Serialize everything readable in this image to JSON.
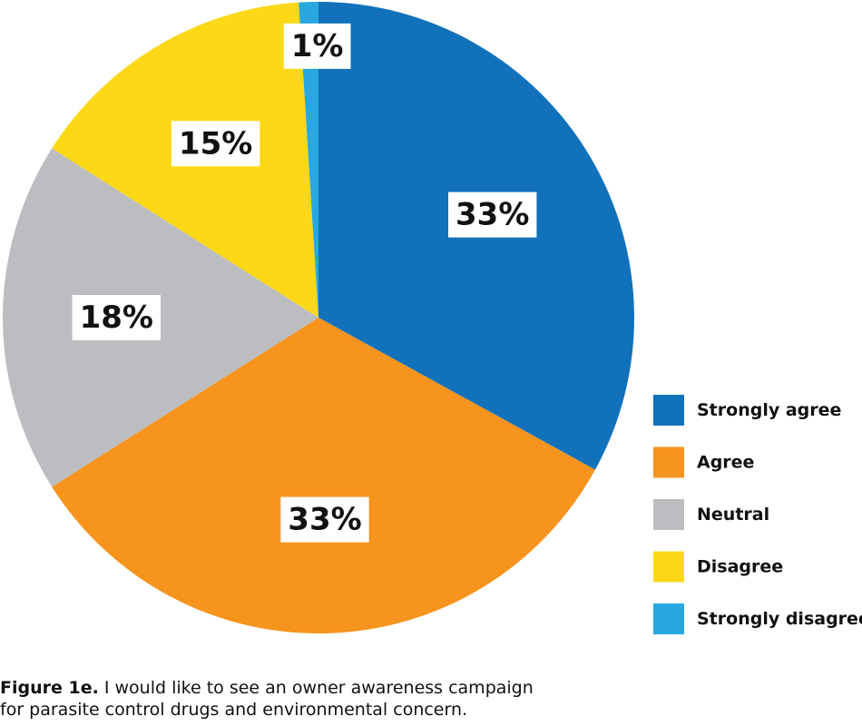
{
  "chart_data": {
    "type": "pie",
    "categories": [
      "Strongly agree",
      "Agree",
      "Neutral",
      "Disagree",
      "Strongly disagree"
    ],
    "values": [
      33,
      33,
      18,
      15,
      1
    ],
    "value_labels": [
      "33%",
      "33%",
      "18%",
      "15%",
      "1%"
    ],
    "colors": [
      "#1172bb",
      "#f7941d",
      "#bcbdc0",
      "#fcd817",
      "#29a8e0"
    ],
    "legend": "right",
    "caption": {
      "label": "Figure 1e.",
      "text": "I would like to see an owner awareness campaign for parasite control drugs and environmental concern."
    }
  }
}
